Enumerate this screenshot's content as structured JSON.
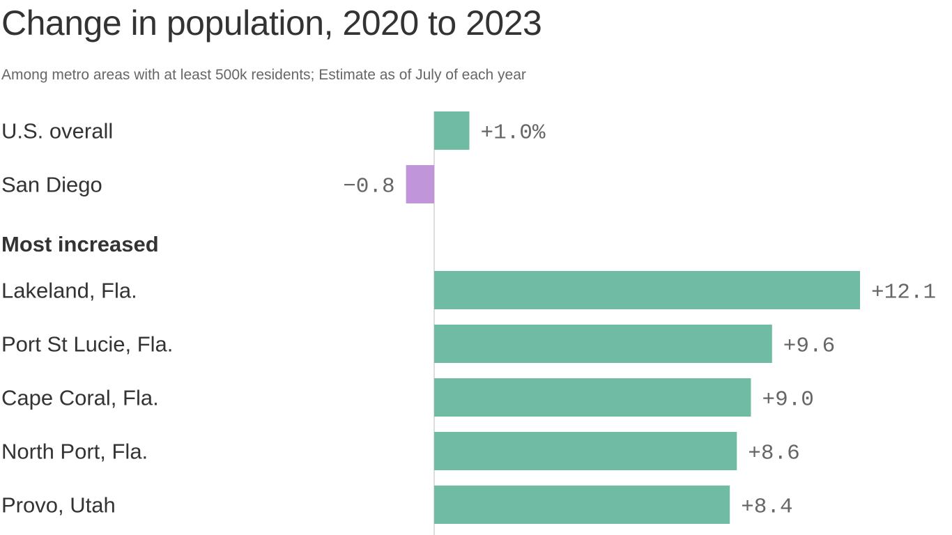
{
  "chart_data": {
    "type": "bar",
    "orientation": "horizontal",
    "title": "Change in population, 2020 to 2023",
    "subtitle": "Among metro areas with at least 500k residents; Estimate as of July of each year",
    "xlabel": "",
    "ylabel": "",
    "unit": "%",
    "xlim": [
      -0.8,
      12.1
    ],
    "grid": false,
    "colors": {
      "positive": "#6fbba3",
      "negative": "#c195da",
      "zero_line": "#dddddd"
    },
    "groups": [
      {
        "label": "",
        "rows": [
          {
            "category": "U.S. overall",
            "value": 1.0,
            "label": "+1.0%"
          },
          {
            "category": "San Diego",
            "value": -0.8,
            "label": "−0.8"
          }
        ]
      },
      {
        "label": "Most increased",
        "rows": [
          {
            "category": "Lakeland, Fla.",
            "value": 12.1,
            "label": "+12.1"
          },
          {
            "category": "Port St Lucie, Fla.",
            "value": 9.6,
            "label": "+9.6"
          },
          {
            "category": "Cape Coral, Fla.",
            "value": 9.0,
            "label": "+9.0"
          },
          {
            "category": "North Port, Fla.",
            "value": 8.6,
            "label": "+8.6"
          },
          {
            "category": "Provo, Utah",
            "value": 8.4,
            "label": "+8.4"
          }
        ]
      }
    ]
  }
}
